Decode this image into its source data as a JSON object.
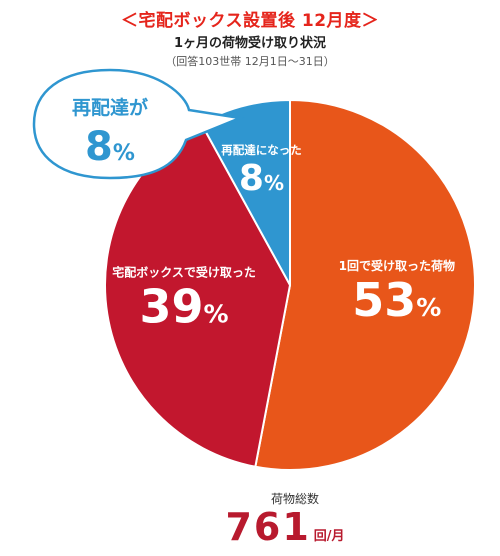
{
  "header": {
    "title": "＜宅配ボックス設置後 12月度＞",
    "subtitle": "1ヶ月の荷物受け取り状況",
    "note": "（回答103世帯 12月1日〜31日）"
  },
  "callout": {
    "line1": "再配達が",
    "value": "8",
    "unit": "%"
  },
  "chart_data": {
    "type": "pie",
    "title": "＜宅配ボックス設置後 12月度＞",
    "slices": [
      {
        "label": "1回で受け取った荷物",
        "value": 53,
        "color": "#e8561a"
      },
      {
        "label": "宅配ボックスで受け取った",
        "value": 39,
        "color": "#c2172e"
      },
      {
        "label": "再配達になった",
        "value": 8,
        "color": "#2f96d0"
      }
    ],
    "unit": "%"
  },
  "total": {
    "label": "荷物総数",
    "value": "761",
    "unit": "回/月"
  }
}
